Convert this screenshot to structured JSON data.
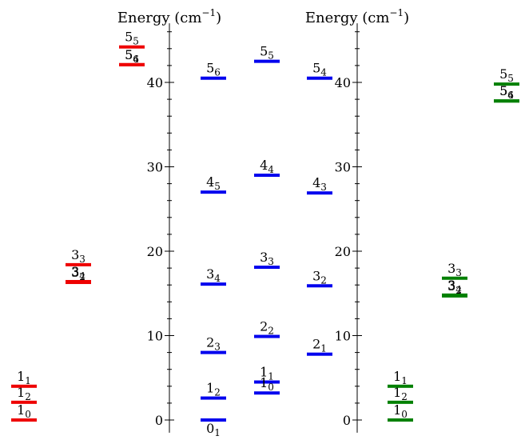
{
  "chart_data": [
    {
      "type": "energy-level-diagram",
      "color": "#ee0000",
      "levels": [
        {
          "n": "1",
          "sub": "2",
          "value": 2.1
        },
        {
          "n": "1",
          "sub": "1",
          "value": 4.0
        },
        {
          "n": "1",
          "sub": "0",
          "value": 0.0
        },
        {
          "n": "3",
          "sub": "4",
          "value": 16.4
        },
        {
          "n": "3",
          "sub": "3",
          "value": 18.4
        },
        {
          "n": "3",
          "sub": "2",
          "value": 16.3
        },
        {
          "n": "5",
          "sub": "6",
          "value": 42.1
        },
        {
          "n": "5",
          "sub": "5",
          "value": 44.2
        },
        {
          "n": "5",
          "sub": "4",
          "value": 42.1
        }
      ]
    },
    {
      "type": "energy-level-diagram",
      "color": "#0000ee",
      "ylabel": "Energy (cm",
      "ylabel_sup": "−1",
      "ylabel_close": ")",
      "ylim": [
        -1.5,
        47
      ],
      "yticks": [
        0,
        10,
        20,
        30,
        40
      ],
      "minor_tick_step": 2,
      "levels": [
        {
          "n": "0",
          "sub": "1",
          "value": 0.0
        },
        {
          "n": "1",
          "sub": "2",
          "value": 2.6
        },
        {
          "n": "2",
          "sub": "3",
          "value": 8.0
        },
        {
          "n": "3",
          "sub": "4",
          "value": 16.1
        },
        {
          "n": "4",
          "sub": "5",
          "value": 27.0
        },
        {
          "n": "5",
          "sub": "6",
          "value": 40.5
        },
        {
          "n": "1",
          "sub": "1",
          "value": 4.5
        },
        {
          "n": "2",
          "sub": "2",
          "value": 9.9
        },
        {
          "n": "3",
          "sub": "3",
          "value": 18.1
        },
        {
          "n": "4",
          "sub": "4",
          "value": 29.0
        },
        {
          "n": "5",
          "sub": "5",
          "value": 42.5
        },
        {
          "n": "1",
          "sub": "0",
          "value": 3.2
        },
        {
          "n": "2",
          "sub": "1",
          "value": 7.8
        },
        {
          "n": "3",
          "sub": "2",
          "value": 15.9
        },
        {
          "n": "4",
          "sub": "3",
          "value": 26.9
        },
        {
          "n": "5",
          "sub": "4",
          "value": 40.5
        }
      ]
    },
    {
      "type": "energy-level-diagram",
      "color": "#008000",
      "ylabel": "Energy (cm",
      "ylabel_sup": "−1",
      "ylabel_close": ")",
      "ylim": [
        -1.5,
        47
      ],
      "yticks": [
        0,
        10,
        20,
        30,
        40
      ],
      "minor_tick_step": 2,
      "levels": [
        {
          "n": "1",
          "sub": "2",
          "value": 2.1
        },
        {
          "n": "1",
          "sub": "1",
          "value": 4.0
        },
        {
          "n": "1",
          "sub": "0",
          "value": 0.0
        },
        {
          "n": "3",
          "sub": "4",
          "value": 14.8
        },
        {
          "n": "3",
          "sub": "3",
          "value": 16.8
        },
        {
          "n": "3",
          "sub": "2",
          "value": 14.7
        },
        {
          "n": "5",
          "sub": "6",
          "value": 37.8
        },
        {
          "n": "5",
          "sub": "5",
          "value": 39.8
        },
        {
          "n": "5",
          "sub": "4",
          "value": 37.8
        }
      ]
    }
  ]
}
